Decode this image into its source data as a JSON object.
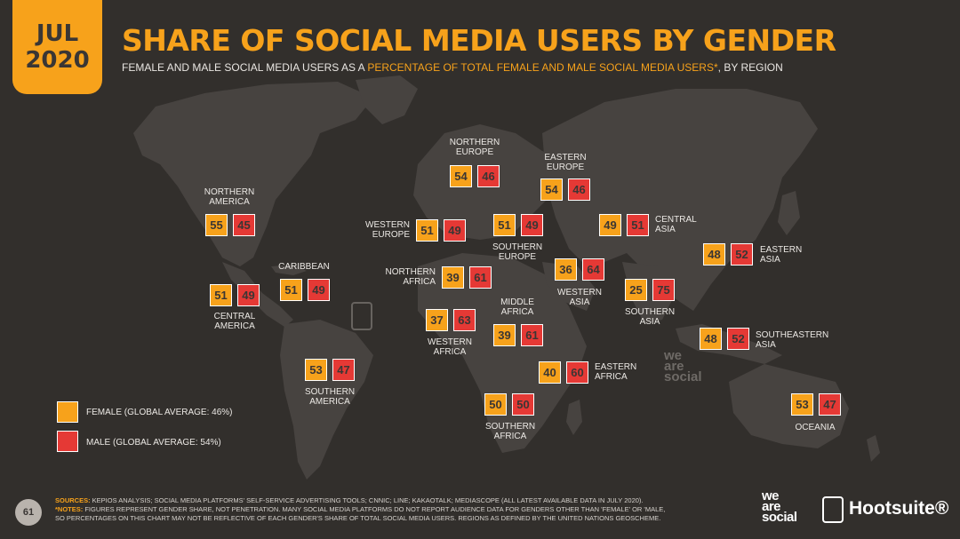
{
  "header": {
    "date_month": "JUL",
    "date_year": "2020",
    "title": "SHARE OF SOCIAL MEDIA USERS BY GENDER",
    "subtitle_pre": "FEMALE AND MALE SOCIAL MEDIA USERS AS A ",
    "subtitle_highlight": "PERCENTAGE OF TOTAL FEMALE AND MALE SOCIAL MEDIA USERS*",
    "subtitle_post": ", BY REGION"
  },
  "chart_data": {
    "type": "map",
    "series": [
      {
        "name": "FEMALE",
        "color": "#f7a21b"
      },
      {
        "name": "MALE",
        "color": "#e53935"
      }
    ],
    "regions": [
      {
        "name": "NORTHERN\nAMERICA",
        "female": 55,
        "male": 45
      },
      {
        "name": "CENTRAL\nAMERICA",
        "female": 51,
        "male": 49
      },
      {
        "name": "CARIBBEAN",
        "female": 51,
        "male": 49
      },
      {
        "name": "SOUTHERN\nAMERICA",
        "female": 53,
        "male": 47
      },
      {
        "name": "NORTHERN\nEUROPE",
        "female": 54,
        "male": 46
      },
      {
        "name": "WESTERN\nEUROPE",
        "female": 51,
        "male": 49
      },
      {
        "name": "SOUTHERN\nEUROPE",
        "female": 51,
        "male": 49
      },
      {
        "name": "EASTERN\nEUROPE",
        "female": 54,
        "male": 46
      },
      {
        "name": "NORTHERN\nAFRICA",
        "female": 39,
        "male": 61
      },
      {
        "name": "WESTERN\nAFRICA",
        "female": 37,
        "male": 63
      },
      {
        "name": "MIDDLE\nAFRICA",
        "female": 39,
        "male": 61
      },
      {
        "name": "EASTERN\nAFRICA",
        "female": 40,
        "male": 60
      },
      {
        "name": "SOUTHERN\nAFRICA",
        "female": 50,
        "male": 50
      },
      {
        "name": "WESTERN\nASIA",
        "female": 36,
        "male": 64
      },
      {
        "name": "CENTRAL\nASIA",
        "female": 49,
        "male": 51
      },
      {
        "name": "SOUTHERN\nASIA",
        "female": 25,
        "male": 75
      },
      {
        "name": "EASTERN\nASIA",
        "female": 48,
        "male": 52
      },
      {
        "name": "SOUTHEASTERN\nASIA",
        "female": 48,
        "male": 52
      },
      {
        "name": "OCEANIA",
        "female": 53,
        "male": 47
      }
    ]
  },
  "legend": {
    "female_label": "FEMALE (GLOBAL AVERAGE: 46%)",
    "male_label": "MALE (GLOBAL AVERAGE: 54%)",
    "female_color": "#f7a21b",
    "male_color": "#e53935"
  },
  "footer": {
    "page_number": "61",
    "sources_label": "SOURCES:",
    "sources_text": " KEPIOS ANALYSIS; SOCIAL MEDIA PLATFORMS' SELF-SERVICE ADVERTISING TOOLS; CNNIC; LINE; KAKAOTALK; MEDIASCOPE (ALL LATEST AVAILABLE DATA IN JULY 2020).",
    "notes_label": "*NOTES:",
    "notes_text_1": " FIGURES REPRESENT GENDER SHARE, NOT PENETRATION. MANY SOCIAL MEDIA PLATFORMS DO NOT REPORT AUDIENCE DATA FOR GENDERS OTHER THAN 'FEMALE' OR 'MALE,",
    "notes_text_2": "SO PERCENTAGES ON THIS CHART MAY NOT BE REFLECTIVE OF EACH GENDER'S SHARE OF TOTAL SOCIAL MEDIA USERS. REGIONS AS DEFINED BY THE UNITED NATIONS GEOSCHEME.",
    "brand_logo": "we\nare\nsocial",
    "watermark_logo": "we\nare\nsocial",
    "hootsuite": "Hootsuite®"
  }
}
